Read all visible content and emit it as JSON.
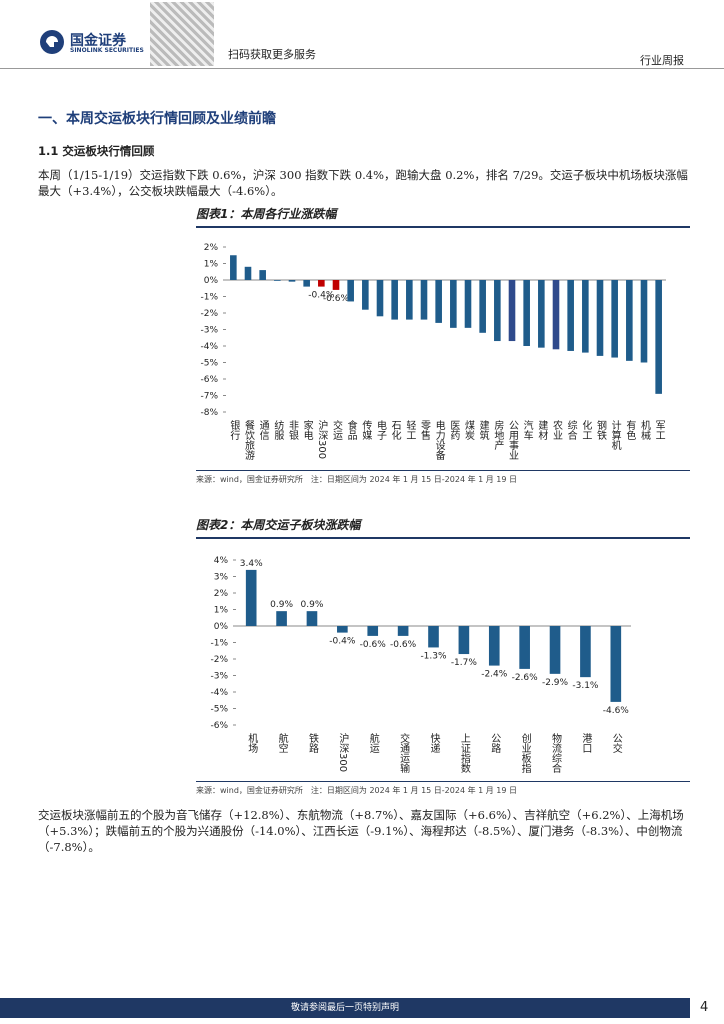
{
  "header": {
    "logo_cn": "国金证券",
    "logo_en": "SINOLINK SECURITIES",
    "qr_text": "扫码获取更多服务",
    "report_type": "行业周报"
  },
  "section_title": "一、本周交运板块行情回顾及业绩前瞻",
  "subsection_title": "1.1 交运板块行情回顾",
  "paragraphs": [
    "本周（1/15-1/19）交运指数下跌 0.6%，沪深 300 指数下跌 0.4%，跑输大盘 0.2%，排名 7/29。交运子板块中机场板块涨幅最大（+3.4%），公交板块跌幅最大（-4.6%）。",
    "交运板块涨幅前五的个股为音飞储存（+12.8%）、东航物流（+8.7%）、嘉友国际（+6.6%）、吉祥航空（+6.2%）、上海机场（+5.3%）；跌幅前五的个股为兴通股份（-14.0%）、江西长运（-9.1%）、海程邦达（-8.5%）、厦门港务（-8.3%）、中创物流（-7.8%）。"
  ],
  "figures": [
    {
      "title": "图表1：本周各行业涨跌幅",
      "source": "来源：wind，国金证券研究所　注：日期区间为 2024 年 1 月 15 日-2024 年 1 月 19 日",
      "chart_data": {
        "type": "bar",
        "categories": [
          "银行",
          "餐饮旅游",
          "通信",
          "纺服",
          "非银",
          "家电",
          "沪深300",
          "交运",
          "食品",
          "传媒",
          "电子",
          "石化",
          "轻工",
          "零售",
          "电力设备",
          "医药",
          "煤炭",
          "建筑",
          "房地产",
          "公用事业",
          "汽车",
          "建材",
          "农业",
          "综合",
          "化工",
          "钢铁",
          "计算机",
          "有色",
          "机械",
          "军工"
        ],
        "values": [
          1.5,
          0.8,
          0.6,
          -0.05,
          -0.1,
          -0.4,
          -0.4,
          -0.6,
          -1.3,
          -1.8,
          -2.2,
          -2.4,
          -2.4,
          -2.4,
          -2.6,
          -2.9,
          -2.9,
          -3.2,
          -3.7,
          -3.7,
          -4.0,
          -4.1,
          -4.2,
          -4.3,
          -4.4,
          -4.6,
          -4.7,
          -4.9,
          -5.0,
          -6.9
        ],
        "value_labels": [
          null,
          null,
          null,
          null,
          null,
          null,
          "-0.4%",
          "-0.6%",
          null,
          null,
          null,
          null,
          null,
          null,
          null,
          null,
          null,
          null,
          null,
          null,
          null,
          null,
          null,
          null,
          null,
          null,
          null,
          null,
          null,
          null
        ],
        "colors": [
          "#1f5c8b",
          "#1f5c8b",
          "#1f5c8b",
          "#1f5c8b",
          "#1f5c8b",
          "#1f5c8b",
          "#c00000",
          "#c00000",
          "#1f5c8b",
          "#1f5c8b",
          "#1f5c8b",
          "#1f5c8b",
          "#1f5c8b",
          "#1f5c8b",
          "#1f5c8b",
          "#1f5c8b",
          "#1f5c8b",
          "#1f5c8b",
          "#1f5c8b",
          "#2f4a8c",
          "#1f5c8b",
          "#1f5c8b",
          "#2f4a8c",
          "#1f5c8b",
          "#1f5c8b",
          "#1f5c8b",
          "#1f5c8b",
          "#1f5c8b",
          "#1f5c8b",
          "#1f5c8b"
        ],
        "ylim": [
          -8,
          2
        ],
        "yticks": [
          {
            "value": 2,
            "label": "2%"
          },
          {
            "value": 1,
            "label": "1%"
          },
          {
            "value": 0,
            "label": "0%"
          },
          {
            "value": -1,
            "label": "-1%"
          },
          {
            "value": -2,
            "label": "-2%"
          },
          {
            "value": -3,
            "label": "-3%"
          },
          {
            "value": -4,
            "label": "-4%"
          },
          {
            "value": -5,
            "label": "-5%"
          },
          {
            "value": -6,
            "label": "-6%"
          },
          {
            "value": -7,
            "label": "-7%"
          },
          {
            "value": -8,
            "label": "-8%"
          }
        ]
      }
    },
    {
      "title": "图表2：本周交运子板块涨跌幅",
      "source": "来源：wind，国金证券研究所　注：日期区间为 2024 年 1 月 15 日-2024 年 1 月 19 日",
      "chart_data": {
        "type": "bar",
        "categories": [
          "机场",
          "航空",
          "铁路",
          "沪深300",
          "航运",
          "交通运输",
          "快递",
          "上证指数",
          "公路",
          "创业板指",
          "物流综合",
          "港口",
          "公交"
        ],
        "values": [
          3.4,
          0.9,
          0.9,
          -0.4,
          -0.6,
          -0.6,
          -1.3,
          -1.7,
          -2.4,
          -2.6,
          -2.9,
          -3.1,
          -4.6
        ],
        "value_labels": [
          "3.4%",
          "0.9%",
          "0.9%",
          "-0.4%",
          "-0.6%",
          "-0.6%",
          "-1.3%",
          "-1.7%",
          "-2.4%",
          "-2.6%",
          "-2.9%",
          "-3.1%",
          "-4.6%"
        ],
        "color": "#1f5c8b",
        "ylim": [
          -6,
          4
        ],
        "yticks": [
          {
            "value": 4,
            "label": "4%"
          },
          {
            "value": 3,
            "label": "3%"
          },
          {
            "value": 2,
            "label": "2%"
          },
          {
            "value": 1,
            "label": "1%"
          },
          {
            "value": 0,
            "label": "0%"
          },
          {
            "value": -1,
            "label": "-1%"
          },
          {
            "value": -2,
            "label": "-2%"
          },
          {
            "value": -3,
            "label": "-3%"
          },
          {
            "value": -4,
            "label": "-4%"
          },
          {
            "value": -5,
            "label": "-5%"
          },
          {
            "value": -6,
            "label": "-6%"
          }
        ]
      }
    }
  ],
  "footer": {
    "disclaimer": "敬请参阅最后一页特别声明",
    "page": "4"
  }
}
